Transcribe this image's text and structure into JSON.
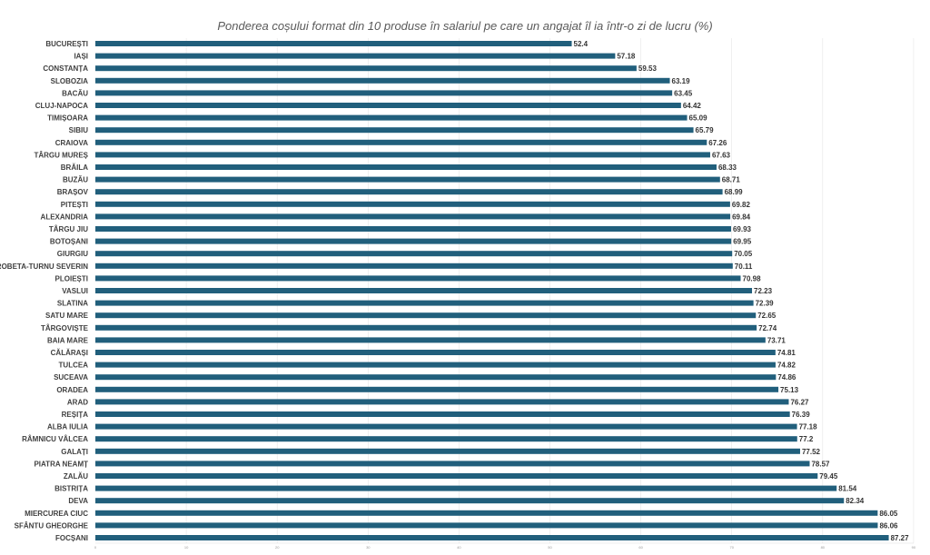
{
  "chart_data": {
    "type": "bar",
    "orientation": "horizontal",
    "title": "Ponderea coșului format din 10 produse în salariul pe care un angajat îl ia într-o zi de lucru (%)",
    "xlabel": "",
    "ylabel": "",
    "xlim": [
      0,
      90
    ],
    "x_ticks": [
      "0",
      "10",
      "20",
      "30",
      "40",
      "50",
      "60",
      "70",
      "80",
      "90"
    ],
    "grid": "vertical",
    "legend": "none",
    "bar_color": "#215f7c",
    "categories": [
      "BUCUREȘTI",
      "IAȘI",
      "CONSTANȚA",
      "SLOBOZIA",
      "BACĂU",
      "CLUJ-NAPOCA",
      "TIMIȘOARA",
      "SIBIU",
      "CRAIOVA",
      "TÂRGU MUREȘ",
      "BRĂILA",
      "BUZĂU",
      "BRAȘOV",
      "PITEȘTI",
      "ALEXANDRIA",
      "TÂRGU JIU",
      "BOTOȘANI",
      "GIURGIU",
      "DROBETA-TURNU SEVERIN",
      "PLOIEȘTI",
      "VASLUI",
      "SLATINA",
      "SATU MARE",
      "TÂRGOVIȘTE",
      "BAIA MARE",
      "CĂLĂRAȘI",
      "TULCEA",
      "SUCEAVA",
      "ORADEA",
      "ARAD",
      "REȘIȚA",
      "ALBA IULIA",
      "RÂMNICU VÂLCEA",
      "GALAȚI",
      "PIATRA NEAMȚ",
      "ZALĂU",
      "BISTRIȚA",
      "DEVA",
      "MIERCUREA CIUC",
      "SFÂNTU GHEORGHE",
      "FOCȘANI"
    ],
    "values": [
      52.4,
      57.18,
      59.53,
      63.19,
      63.45,
      64.42,
      65.09,
      65.79,
      67.26,
      67.63,
      68.33,
      68.71,
      68.99,
      69.82,
      69.84,
      69.93,
      69.95,
      70.05,
      70.11,
      70.98,
      72.23,
      72.39,
      72.65,
      72.74,
      73.71,
      74.81,
      74.82,
      74.86,
      75.13,
      76.27,
      76.39,
      77.18,
      77.2,
      77.52,
      78.57,
      79.45,
      81.54,
      82.34,
      86.05,
      86.06,
      87.27
    ],
    "data_labels": [
      "52.4",
      "57.18",
      "59.53",
      "63.19",
      "63.45",
      "64.42",
      "65.09",
      "65.79",
      "67.26",
      "67.63",
      "68.33",
      "68.71",
      "68.99",
      "69.82",
      "69.84",
      "69.93",
      "69.95",
      "70.05",
      "70.11",
      "70.98",
      "72.23",
      "72.39",
      "72.65",
      "72.74",
      "73.71",
      "74.81",
      "74.82",
      "74.86",
      "75.13",
      "76.27",
      "76.39",
      "77.18",
      "77.2",
      "77.52",
      "78.57",
      "79.45",
      "81.54",
      "82.34",
      "86.05",
      "86.06",
      "87.27"
    ]
  }
}
